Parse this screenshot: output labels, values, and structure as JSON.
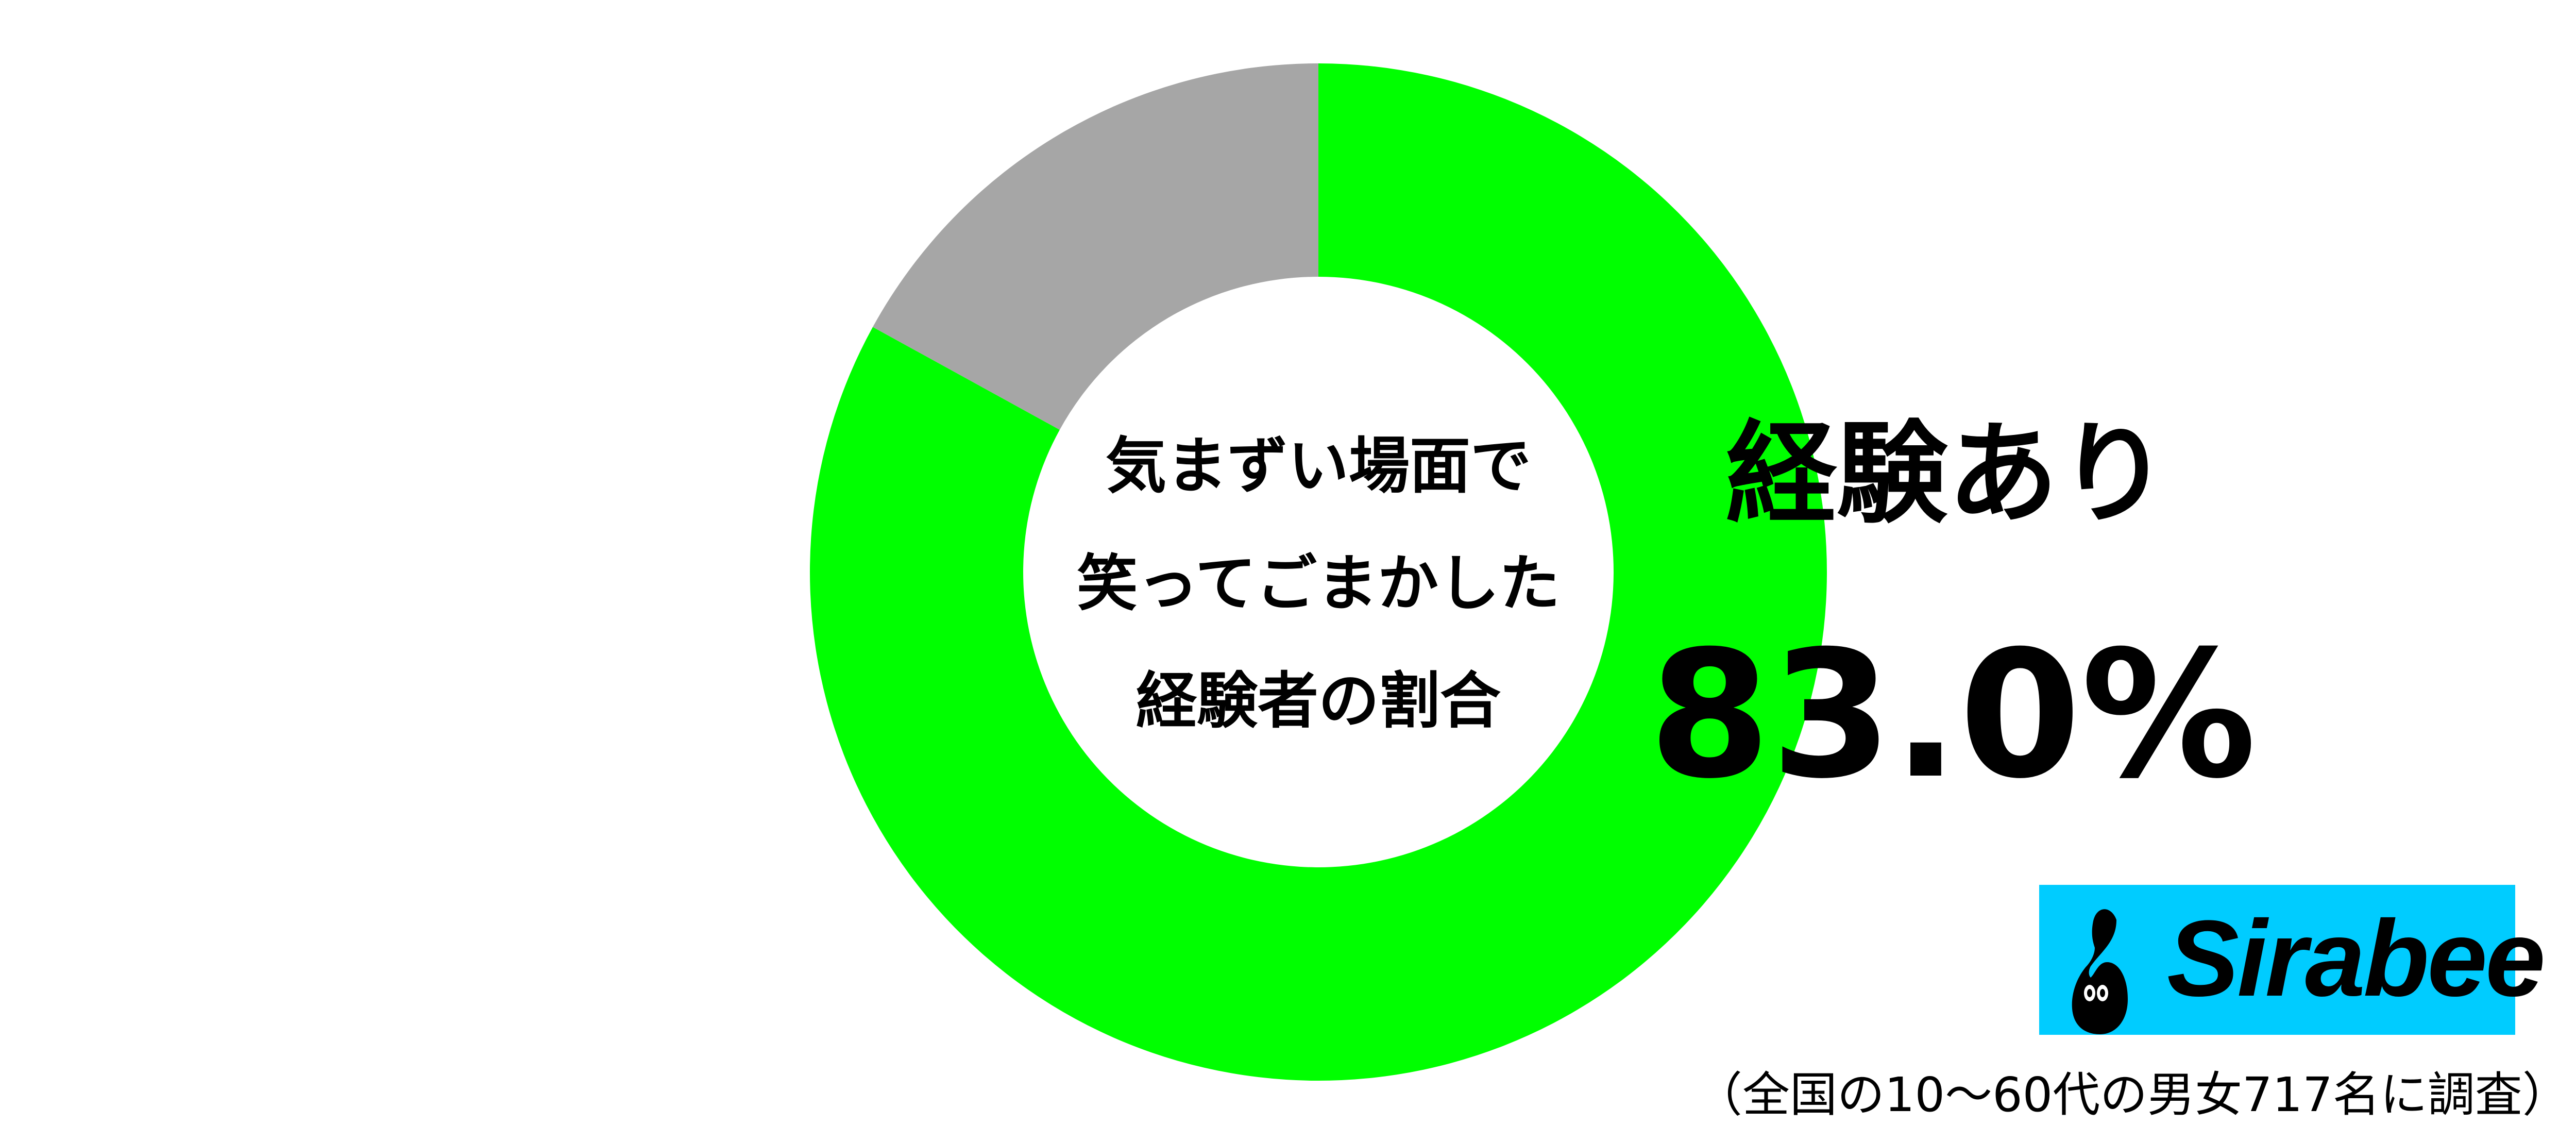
{
  "chart_data": {
    "type": "pie",
    "subtype": "donut",
    "center_label_lines": [
      "気まずい場面で",
      "笑ってごまかした",
      "経験者の割合"
    ],
    "slices": [
      {
        "label": "経験あり",
        "value": 83.0,
        "color": "#00ff00"
      },
      {
        "value": 17.0,
        "color": "#a6a6a6"
      }
    ],
    "highlight": {
      "label": "経験あり",
      "value_text": "83.0%"
    }
  },
  "logo": {
    "text": "Sirabee",
    "background": "#00ccff"
  },
  "footer": {
    "note": "（全国の10〜60代の男女717名に調査）"
  }
}
